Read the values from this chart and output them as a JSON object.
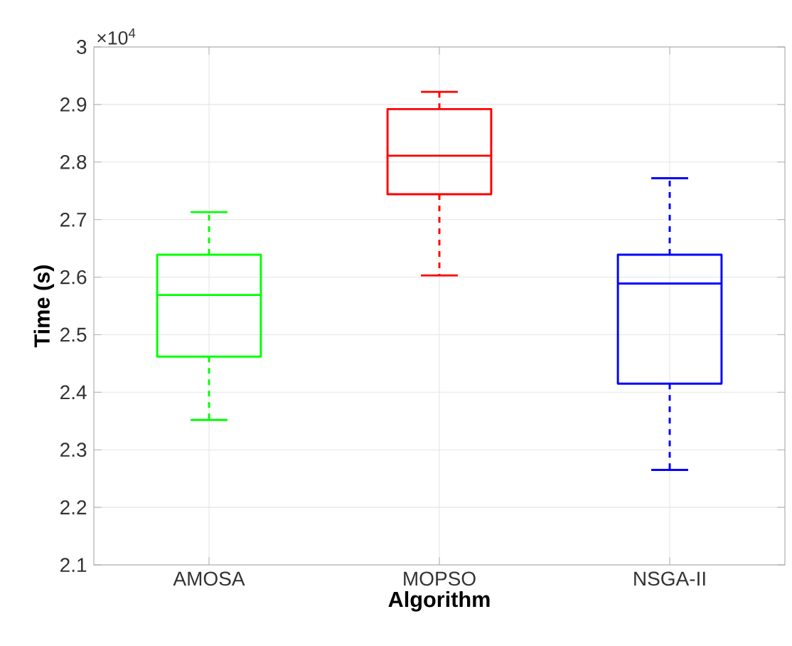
{
  "chart_data": {
    "type": "box",
    "xlabel": "Algorithm",
    "ylabel": "Time (s)",
    "categories": [
      "AMOSA",
      "MOPSO",
      "NSGA-II"
    ],
    "colors": [
      "#00ff00",
      "#ff0000",
      "#0000ff"
    ],
    "boxes": [
      {
        "low": 2.352,
        "q1": 2.462,
        "median": 2.569,
        "q3": 2.639,
        "high": 2.713
      },
      {
        "low": 2.603,
        "q1": 2.744,
        "median": 2.811,
        "q3": 2.892,
        "high": 2.922
      },
      {
        "low": 2.265,
        "q1": 2.415,
        "median": 2.589,
        "q3": 2.639,
        "high": 2.772
      }
    ],
    "ylim": [
      2.1,
      3
    ],
    "yticks": [
      2.1,
      2.2,
      2.3,
      2.4,
      2.5,
      2.6,
      2.7,
      2.8,
      2.9,
      3
    ],
    "grid": true,
    "annotations": [
      "×10$^{4}$"
    ]
  }
}
